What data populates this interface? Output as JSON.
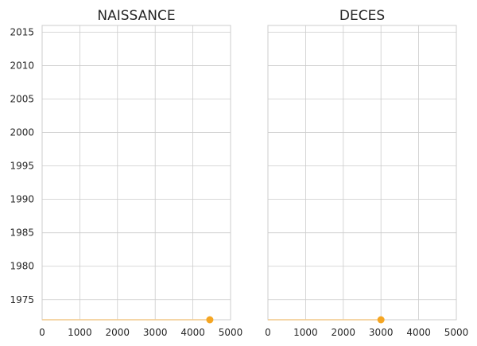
{
  "chart_data": [
    {
      "type": "scatter",
      "title": "NAISSANCE",
      "xlabel": "",
      "ylabel": "",
      "xlim": [
        0,
        5000
      ],
      "ylim": [
        1972,
        2016
      ],
      "xticks": [
        0,
        1000,
        2000,
        3000,
        4000,
        5000
      ],
      "yticks": [
        1975,
        1980,
        1985,
        1990,
        1995,
        2000,
        2005,
        2010,
        2015
      ],
      "grid": true,
      "points": [
        {
          "x": 4450,
          "y": 1972
        }
      ],
      "stem_from_x": 0,
      "color": "#f5a623",
      "stem_color": "#f2c98a"
    },
    {
      "type": "scatter",
      "title": "DECES",
      "xlabel": "",
      "ylabel": "",
      "xlim": [
        0,
        5000
      ],
      "ylim": [
        1972,
        2016
      ],
      "xticks": [
        0,
        1000,
        2000,
        3000,
        4000,
        5000
      ],
      "yticks": [],
      "grid": true,
      "points": [
        {
          "x": 3000,
          "y": 1972
        }
      ],
      "stem_from_x": 0,
      "color": "#f5a623",
      "stem_color": "#f2c98a"
    }
  ]
}
